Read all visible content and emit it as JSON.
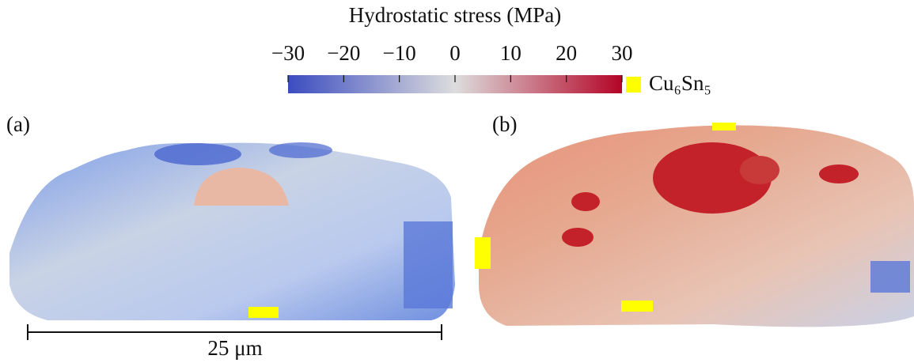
{
  "colorbar": {
    "title": "Hydrostatic stress (MPa)",
    "lim": [
      -30,
      30
    ],
    "ticks": [
      {
        "value": -30,
        "label": "−30"
      },
      {
        "value": -20,
        "label": "−20"
      },
      {
        "value": -10,
        "label": "−10"
      },
      0,
      10,
      20,
      30
    ],
    "colormap": [
      "#3b4cc0",
      "#dddddd",
      "#b40426"
    ]
  },
  "legend": {
    "label": "Cu₆Sn₅",
    "color": "#ffff00"
  },
  "panels": [
    {
      "label": "(a)"
    },
    {
      "label": "(b)"
    }
  ],
  "scale_bar": {
    "label": "25 μm"
  }
}
